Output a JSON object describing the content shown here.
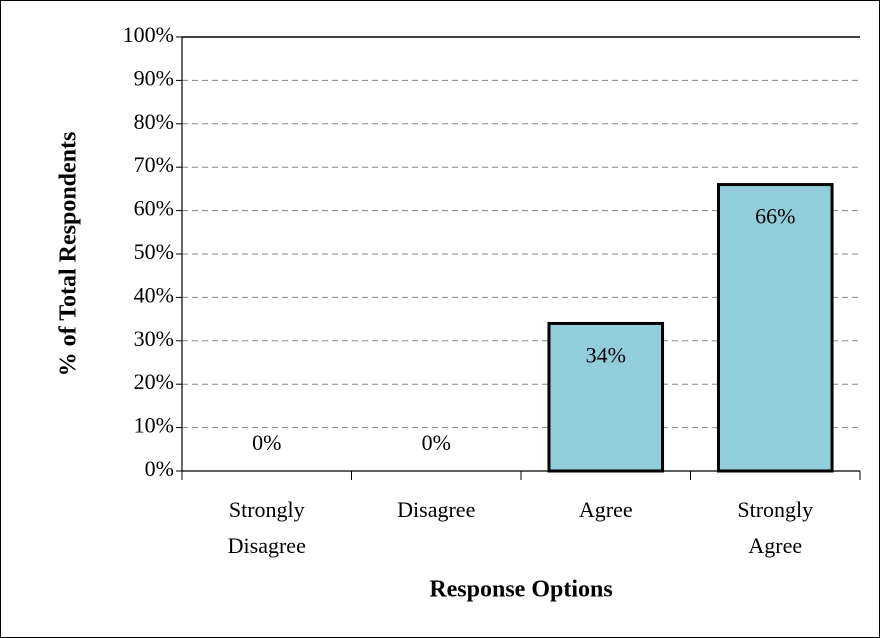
{
  "chart_data": {
    "type": "bar",
    "categories": [
      "Strongly Disagree",
      "Disagree",
      "Agree",
      "Strongly Agree"
    ],
    "values": [
      0,
      0,
      34,
      66
    ],
    "value_labels": [
      "0%",
      "0%",
      "34%",
      "66%"
    ],
    "color": "#92cddc",
    "x_label": "Response Options",
    "y_label": "% of Total Respondents",
    "ylim": [
      0,
      100
    ],
    "yticks": [
      {
        "value": 0,
        "label": "0%"
      },
      {
        "value": 10,
        "label": "10%"
      },
      {
        "value": 20,
        "label": "20%"
      },
      {
        "value": 30,
        "label": "30%"
      },
      {
        "value": 40,
        "label": "40%"
      },
      {
        "value": 50,
        "label": "50%"
      },
      {
        "value": 60,
        "label": "60%"
      },
      {
        "value": 70,
        "label": "70%"
      },
      {
        "value": 80,
        "label": "80%"
      },
      {
        "value": 90,
        "label": "90%"
      },
      {
        "value": 100,
        "label": "100%"
      }
    ],
    "grid": true
  }
}
